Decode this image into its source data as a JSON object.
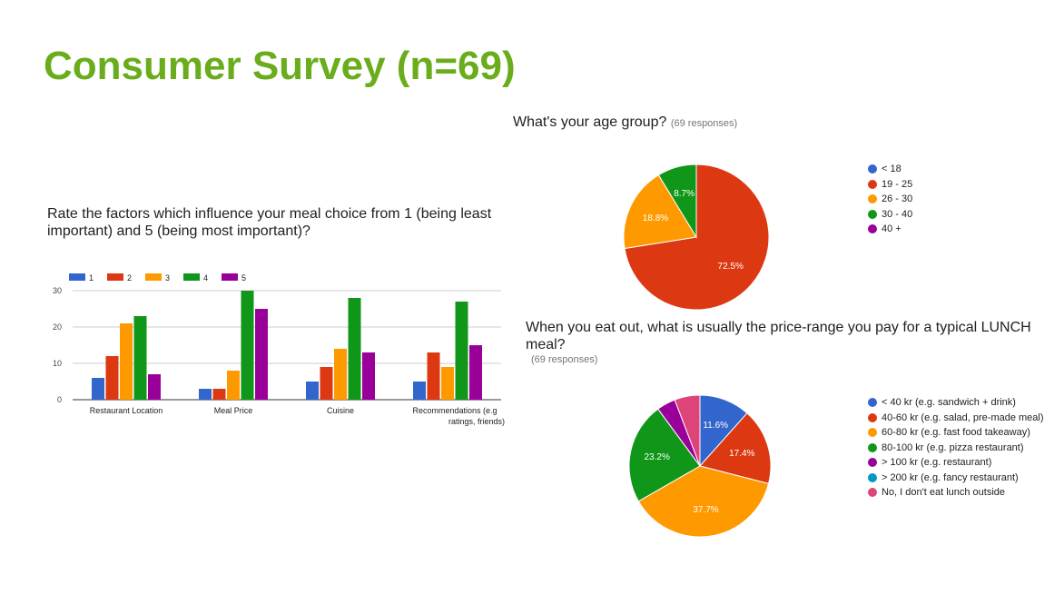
{
  "slide": {
    "title": "Consumer Survey (n=69)"
  },
  "chart_data": [
    {
      "type": "bar",
      "title": "Rate the factors which influence your meal choice from 1 (being least important) and 5 (being most important)?",
      "categories": [
        "Restaurant Location",
        "Meal Price",
        "Cuisine",
        "Recommendations (e.g ratings, friends)"
      ],
      "series": [
        {
          "name": "1",
          "color": "#3366cc",
          "values": [
            6,
            3,
            5,
            5
          ]
        },
        {
          "name": "2",
          "color": "#dc3912",
          "values": [
            12,
            3,
            9,
            13
          ]
        },
        {
          "name": "3",
          "color": "#ff9900",
          "values": [
            21,
            8,
            14,
            9
          ]
        },
        {
          "name": "4",
          "color": "#109618",
          "values": [
            23,
            30,
            28,
            27
          ]
        },
        {
          "name": "5",
          "color": "#990099",
          "values": [
            7,
            25,
            13,
            15
          ]
        }
      ],
      "yticks": [
        0,
        10,
        20,
        30
      ],
      "ylim": [
        0,
        30
      ],
      "grid": true,
      "legend_position": "top"
    },
    {
      "type": "pie",
      "title": "What's your age group?",
      "responses": "(69 responses)",
      "legend_position": "right",
      "slices": [
        {
          "label": "< 18",
          "value": 0,
          "color": "#3366cc",
          "data_label": ""
        },
        {
          "label": "19 - 25",
          "value": 72.5,
          "color": "#dc3912",
          "data_label": "72.5%"
        },
        {
          "label": "26 - 30",
          "value": 18.8,
          "color": "#ff9900",
          "data_label": "18.8%"
        },
        {
          "label": "30 - 40",
          "value": 8.7,
          "color": "#109618",
          "data_label": "8.7%"
        },
        {
          "label": "40 +",
          "value": 0,
          "color": "#990099",
          "data_label": ""
        }
      ]
    },
    {
      "type": "pie",
      "title": "When you eat out, what is usually the price-range you pay for a typical LUNCH meal?",
      "responses": "(69 responses)",
      "legend_position": "right",
      "slices": [
        {
          "label": "< 40 kr (e.g. sandwich + drink)",
          "value": 11.6,
          "color": "#3366cc",
          "data_label": "11.6%"
        },
        {
          "label": "40-60 kr (e.g. salad, pre-made meal)",
          "value": 17.4,
          "color": "#dc3912",
          "data_label": "17.4%"
        },
        {
          "label": "60-80 kr (e.g. fast food takeaway)",
          "value": 37.7,
          "color": "#ff9900",
          "data_label": "37.7%"
        },
        {
          "label": "80-100 kr (e.g. pizza restaurant)",
          "value": 23.2,
          "color": "#109618",
          "data_label": "23.2%"
        },
        {
          "label": "> 100 kr (e.g. restaurant)",
          "value": 4.3,
          "color": "#990099",
          "data_label": ""
        },
        {
          "label": "> 200 kr (e.g. fancy restaurant)",
          "value": 0,
          "color": "#0099c6",
          "data_label": ""
        },
        {
          "label": "No, I don't eat lunch outside",
          "value": 5.8,
          "color": "#dd4477",
          "data_label": ""
        }
      ]
    }
  ]
}
